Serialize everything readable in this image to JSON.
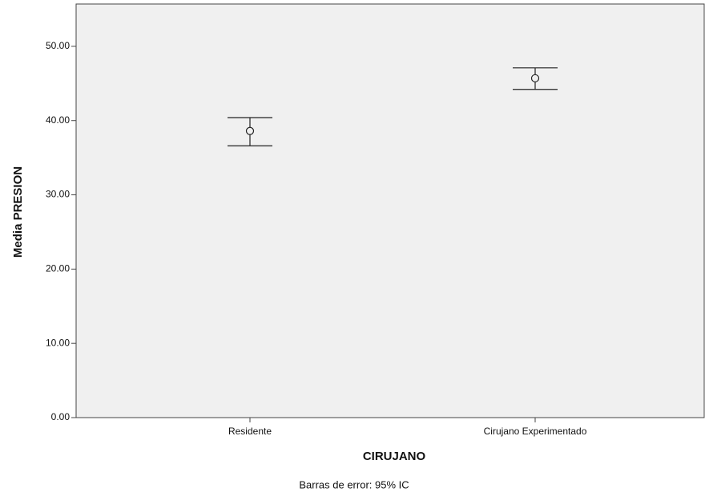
{
  "chart_data": {
    "type": "errorbar",
    "x_label": "CIRUJANO",
    "y_label": "Media PRESION",
    "note": "Barras de error: 95% IC",
    "categories": [
      "Residente",
      "Cirujano Experimentado"
    ],
    "values": [
      38.6,
      45.7
    ],
    "ci_lower": [
      36.6,
      44.2
    ],
    "ci_upper": [
      40.4,
      47.1
    ],
    "color": "#222222",
    "background": "#f0f0f0",
    "ylim": [
      0,
      55.7
    ],
    "yticks": [
      {
        "value": 0,
        "label": "0.00"
      },
      {
        "value": 10,
        "label": "10.00"
      },
      {
        "value": 20,
        "label": "20.00"
      },
      {
        "value": 30,
        "label": "30.00"
      },
      {
        "value": 40,
        "label": "40.00"
      },
      {
        "value": 50,
        "label": "50.00"
      }
    ]
  }
}
